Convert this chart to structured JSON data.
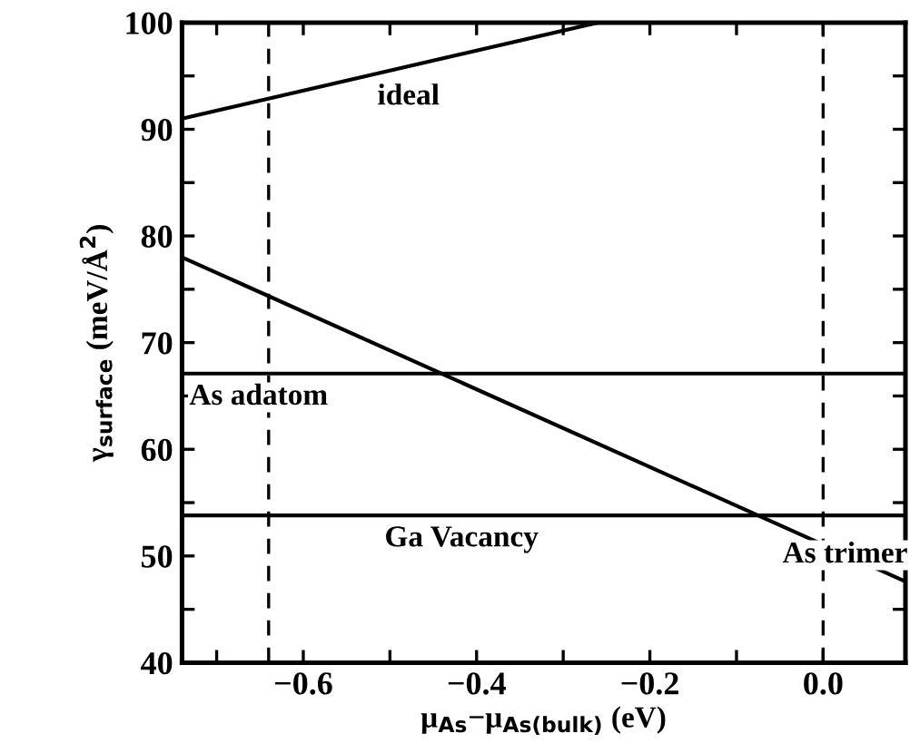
{
  "chart_data": {
    "type": "line",
    "xlabel": "μ$_{As}$−μ$_{As(bulk)}$ (eV)",
    "ylabel": "γ$_{surface}$ (meV/Å$^{2}$)",
    "series": [
      {
        "name": "ideal",
        "color": "#000000",
        "x": [
          -0.74,
          -0.26
        ],
        "values": [
          91,
          100
        ]
      },
      {
        "name": "As trimer",
        "color": "#000000",
        "x": [
          -0.74,
          0.095
        ],
        "values": [
          78,
          47.6
        ]
      },
      {
        "name": "As adatom",
        "color": "#000000",
        "x": [
          -0.74,
          0.095
        ],
        "values": [
          67.1,
          67.1
        ]
      },
      {
        "name": "Ga Vacancy",
        "color": "#000000",
        "x": [
          -0.74,
          0.095
        ],
        "values": [
          53.8,
          53.8
        ]
      }
    ],
    "ref_lines": [
      {
        "axis": "x",
        "value": -0.64,
        "color": "#000000",
        "line_style": "dashed"
      },
      {
        "axis": "x",
        "value": 0.0,
        "color": "#000000",
        "line_style": "dashed"
      }
    ],
    "xlim": [
      -0.74,
      0.095
    ],
    "ylim": [
      40,
      100
    ],
    "xticks": [
      {
        "value": -0.7,
        "label": null
      },
      -0.6,
      {
        "value": -0.5,
        "label": null
      },
      -0.4,
      {
        "value": -0.3,
        "label": null
      },
      -0.2,
      {
        "value": -0.1,
        "label": null
      },
      {
        "value": 0.0,
        "label": "0.0"
      }
    ],
    "yticks": [
      40,
      {
        "value": 45,
        "label": null
      },
      50,
      {
        "value": 55,
        "label": null
      },
      60,
      {
        "value": 65,
        "label": null
      },
      70,
      {
        "value": 75,
        "label": null
      },
      80,
      {
        "value": 85,
        "label": null
      },
      90,
      {
        "value": 95,
        "label": null
      },
      100
    ],
    "grid": false,
    "marker": "none",
    "line_style": "solid"
  }
}
